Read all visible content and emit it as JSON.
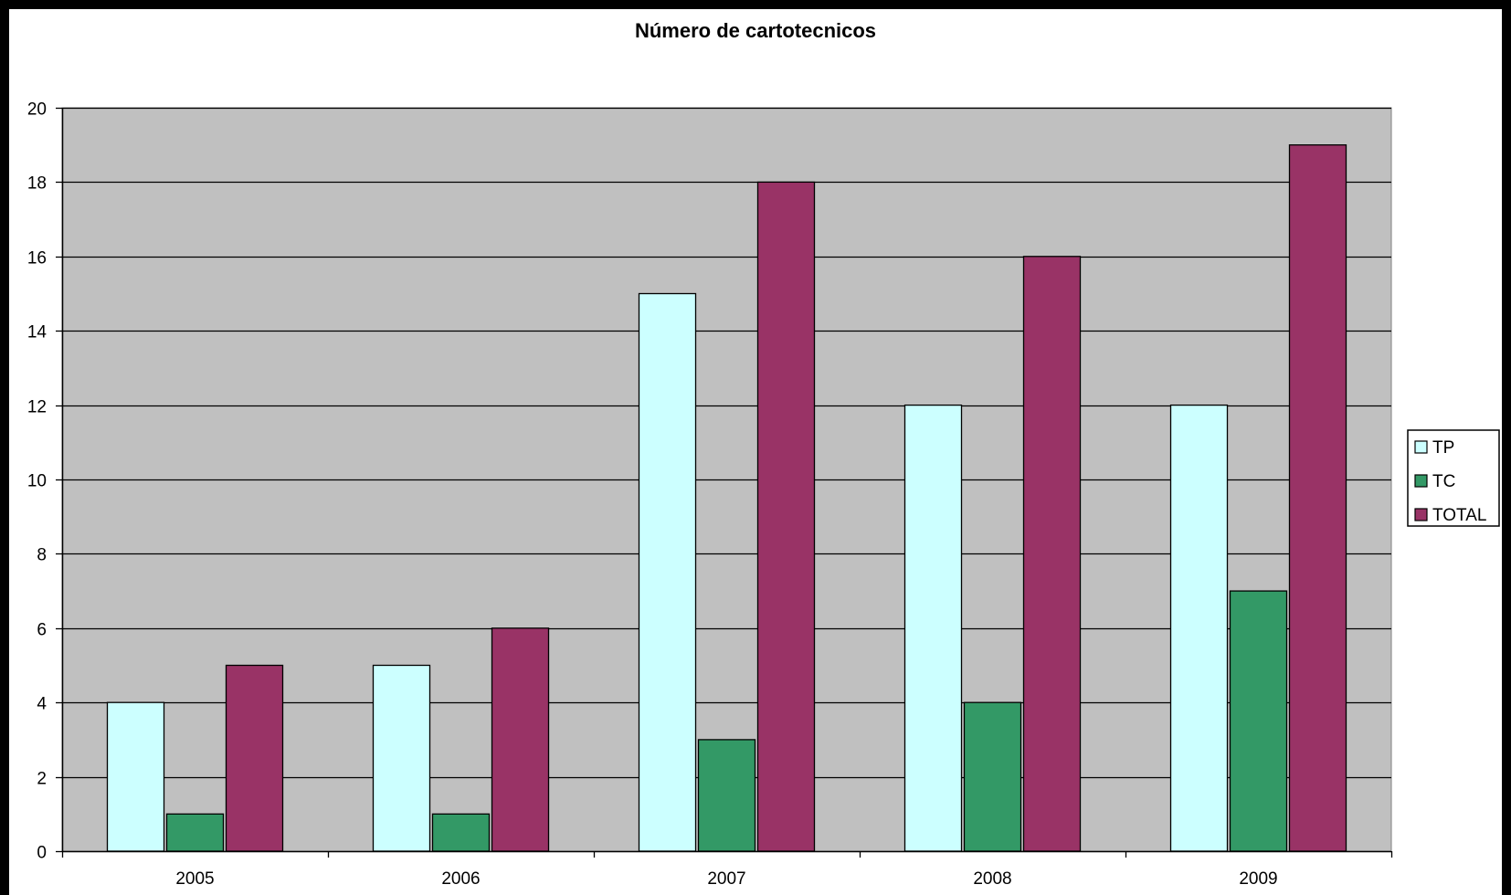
{
  "chart_data": {
    "type": "bar",
    "title": "Número de cartotecnicos",
    "categories": [
      "2005",
      "2006",
      "2007",
      "2008",
      "2009"
    ],
    "series": [
      {
        "name": "TP",
        "values": [
          4,
          5,
          15,
          12,
          12
        ],
        "color": "#CCFFFF"
      },
      {
        "name": "TC",
        "values": [
          1,
          1,
          3,
          4,
          7
        ],
        "color": "#339966"
      },
      {
        "name": "TOTAL",
        "values": [
          5,
          6,
          18,
          16,
          19
        ],
        "color": "#993366"
      }
    ],
    "ylim": [
      0,
      20
    ],
    "yticks": [
      0,
      2,
      4,
      6,
      8,
      10,
      12,
      14,
      16,
      18,
      20
    ],
    "grid": true,
    "legend_position": "right",
    "colors": {
      "frame": "#000000",
      "page_background": "#FFFFFF",
      "plot_background": "#C0C0C0",
      "gridline": "#000000"
    }
  }
}
